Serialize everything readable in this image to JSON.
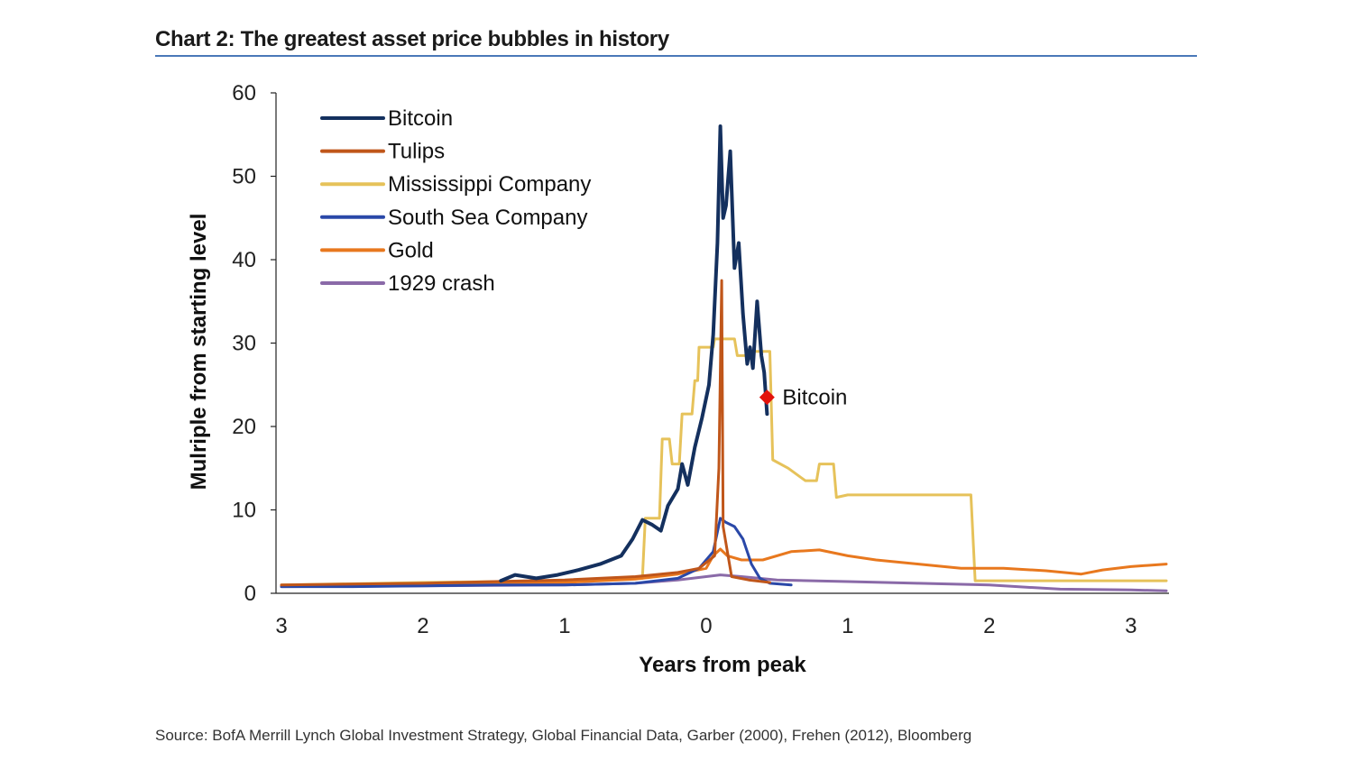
{
  "title": "Chart 2: The greatest asset price bubbles in history",
  "source": "Source:  BofA Merrill Lynch Global Investment Strategy, Global Financial Data, Garber (2000), Frehen (2012),  Bloomberg",
  "chart_data": {
    "type": "line",
    "xlabel": "Years from peak",
    "ylabel": "Mulriple from starting level",
    "xlim": [
      -3,
      3.25
    ],
    "ylim": [
      0,
      60
    ],
    "x_ticks": [
      -3,
      -2,
      -1,
      0,
      1,
      2,
      3
    ],
    "x_tick_labels": [
      "3",
      "2",
      "1",
      "0",
      "1",
      "2",
      "3"
    ],
    "y_ticks": [
      0,
      10,
      20,
      30,
      40,
      50,
      60
    ],
    "y_tick_labels": [
      "0",
      "10",
      "20",
      "30",
      "40",
      "50",
      "60"
    ],
    "grid": false,
    "legend_position": "top-left",
    "annotation": {
      "text": "Bitcoin",
      "x": 0.43,
      "y": 23.5,
      "marker_color": "#e3120b"
    },
    "series": [
      {
        "name": "Bitcoin",
        "color": "#14305e",
        "width": 4,
        "points": [
          [
            -1.45,
            1.5
          ],
          [
            -1.35,
            2.2
          ],
          [
            -1.2,
            1.8
          ],
          [
            -1.05,
            2.2
          ],
          [
            -0.9,
            2.8
          ],
          [
            -0.75,
            3.5
          ],
          [
            -0.6,
            4.5
          ],
          [
            -0.52,
            6.5
          ],
          [
            -0.45,
            8.8
          ],
          [
            -0.38,
            8.2
          ],
          [
            -0.32,
            7.5
          ],
          [
            -0.27,
            10.5
          ],
          [
            -0.2,
            12.5
          ],
          [
            -0.17,
            15.5
          ],
          [
            -0.13,
            13.0
          ],
          [
            -0.08,
            17.5
          ],
          [
            -0.03,
            21.0
          ],
          [
            0.02,
            25.0
          ],
          [
            0.05,
            31.0
          ],
          [
            0.08,
            42.0
          ],
          [
            0.1,
            56.0
          ],
          [
            0.12,
            45.0
          ],
          [
            0.14,
            46.5
          ],
          [
            0.17,
            53.0
          ],
          [
            0.2,
            39.0
          ],
          [
            0.23,
            42.0
          ],
          [
            0.26,
            33.5
          ],
          [
            0.29,
            27.5
          ],
          [
            0.31,
            29.5
          ],
          [
            0.33,
            27.0
          ],
          [
            0.36,
            35.0
          ],
          [
            0.39,
            28.5
          ],
          [
            0.41,
            26.5
          ],
          [
            0.43,
            21.5
          ]
        ]
      },
      {
        "name": "Tulips",
        "color": "#c0561a",
        "width": 3,
        "points": [
          [
            -3,
            1.0
          ],
          [
            -2.5,
            1.1
          ],
          [
            -2.0,
            1.2
          ],
          [
            -1.5,
            1.4
          ],
          [
            -1.0,
            1.6
          ],
          [
            -0.5,
            2.0
          ],
          [
            -0.2,
            2.5
          ],
          [
            -0.05,
            3.0
          ],
          [
            0.06,
            4.5
          ],
          [
            0.09,
            15.0
          ],
          [
            0.11,
            37.5
          ],
          [
            0.12,
            8.0
          ],
          [
            0.18,
            2.0
          ],
          [
            0.3,
            1.6
          ],
          [
            0.45,
            1.3
          ]
        ]
      },
      {
        "name": "Mississippi Company",
        "color": "#e6c25a",
        "width": 3,
        "points": [
          [
            -3,
            1.0
          ],
          [
            -2.0,
            1.3
          ],
          [
            -1.0,
            1.5
          ],
          [
            -0.45,
            1.8
          ],
          [
            -0.43,
            9.0
          ],
          [
            -0.33,
            9.0
          ],
          [
            -0.31,
            18.5
          ],
          [
            -0.26,
            18.5
          ],
          [
            -0.24,
            15.5
          ],
          [
            -0.19,
            15.5
          ],
          [
            -0.17,
            21.5
          ],
          [
            -0.1,
            21.5
          ],
          [
            -0.08,
            25.5
          ],
          [
            -0.06,
            25.5
          ],
          [
            -0.05,
            29.5
          ],
          [
            0.05,
            29.5
          ],
          [
            0.06,
            30.5
          ],
          [
            0.2,
            30.5
          ],
          [
            0.22,
            28.5
          ],
          [
            0.32,
            28.5
          ],
          [
            0.33,
            29.0
          ],
          [
            0.45,
            29.0
          ],
          [
            0.47,
            16.0
          ],
          [
            0.58,
            15.0
          ],
          [
            0.7,
            13.5
          ],
          [
            0.78,
            13.5
          ],
          [
            0.8,
            15.5
          ],
          [
            0.9,
            15.5
          ],
          [
            0.92,
            11.5
          ],
          [
            1.0,
            11.8
          ],
          [
            1.87,
            11.8
          ],
          [
            1.9,
            1.5
          ],
          [
            3.25,
            1.5
          ]
        ]
      },
      {
        "name": "South Sea Company",
        "color": "#2a48a8",
        "width": 3,
        "points": [
          [
            -3,
            0.8
          ],
          [
            -2.5,
            0.8
          ],
          [
            -2.0,
            0.9
          ],
          [
            -1.5,
            1.0
          ],
          [
            -1.0,
            1.0
          ],
          [
            -0.5,
            1.2
          ],
          [
            -0.2,
            1.8
          ],
          [
            -0.05,
            3.0
          ],
          [
            0.05,
            5.0
          ],
          [
            0.1,
            9.0
          ],
          [
            0.14,
            8.5
          ],
          [
            0.2,
            8.0
          ],
          [
            0.26,
            6.5
          ],
          [
            0.32,
            3.5
          ],
          [
            0.38,
            1.8
          ],
          [
            0.45,
            1.2
          ],
          [
            0.6,
            1.0
          ]
        ]
      },
      {
        "name": "Gold",
        "color": "#e8781e",
        "width": 3,
        "points": [
          [
            -3,
            0.9
          ],
          [
            -2.0,
            1.1
          ],
          [
            -1.0,
            1.3
          ],
          [
            -0.5,
            1.7
          ],
          [
            -0.2,
            2.3
          ],
          [
            0.0,
            3.0
          ],
          [
            0.05,
            4.5
          ],
          [
            0.1,
            5.3
          ],
          [
            0.15,
            4.5
          ],
          [
            0.25,
            4.0
          ],
          [
            0.4,
            4.0
          ],
          [
            0.6,
            5.0
          ],
          [
            0.8,
            5.2
          ],
          [
            1.0,
            4.5
          ],
          [
            1.2,
            4.0
          ],
          [
            1.5,
            3.5
          ],
          [
            1.8,
            3.0
          ],
          [
            2.1,
            3.0
          ],
          [
            2.4,
            2.7
          ],
          [
            2.65,
            2.3
          ],
          [
            2.8,
            2.8
          ],
          [
            3.0,
            3.2
          ],
          [
            3.25,
            3.5
          ]
        ]
      },
      {
        "name": "1929 crash",
        "color": "#8a6aa8",
        "width": 3,
        "points": [
          [
            -3,
            0.8
          ],
          [
            -2.0,
            0.9
          ],
          [
            -1.0,
            1.0
          ],
          [
            -0.5,
            1.2
          ],
          [
            -0.2,
            1.6
          ],
          [
            0.0,
            2.0
          ],
          [
            0.1,
            2.2
          ],
          [
            0.25,
            2.0
          ],
          [
            0.5,
            1.6
          ],
          [
            1.0,
            1.4
          ],
          [
            1.5,
            1.2
          ],
          [
            2.0,
            1.0
          ],
          [
            2.5,
            0.5
          ],
          [
            3.0,
            0.4
          ],
          [
            3.25,
            0.3
          ]
        ]
      }
    ]
  }
}
